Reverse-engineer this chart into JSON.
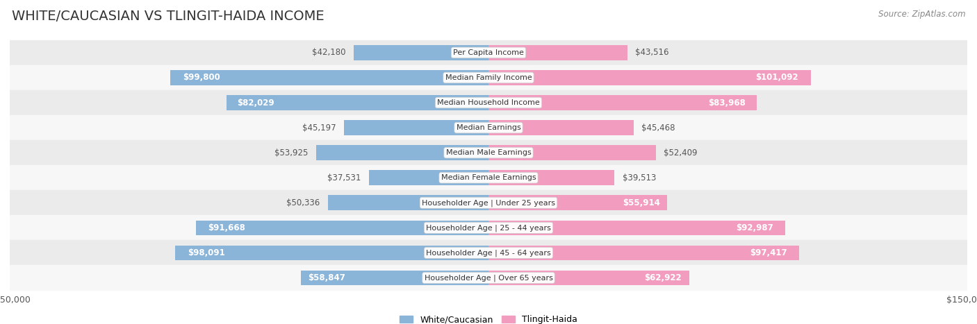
{
  "title": "WHITE/CAUCASIAN VS TLINGIT-HAIDA INCOME",
  "source": "Source: ZipAtlas.com",
  "categories": [
    "Per Capita Income",
    "Median Family Income",
    "Median Household Income",
    "Median Earnings",
    "Median Male Earnings",
    "Median Female Earnings",
    "Householder Age | Under 25 years",
    "Householder Age | 25 - 44 years",
    "Householder Age | 45 - 64 years",
    "Householder Age | Over 65 years"
  ],
  "white_values": [
    42180,
    99800,
    82029,
    45197,
    53925,
    37531,
    50336,
    91668,
    98091,
    58847
  ],
  "tlingit_values": [
    43516,
    101092,
    83968,
    45468,
    52409,
    39513,
    55914,
    92987,
    97417,
    62922
  ],
  "white_labels": [
    "$42,180",
    "$99,800",
    "$82,029",
    "$45,197",
    "$53,925",
    "$37,531",
    "$50,336",
    "$91,668",
    "$98,091",
    "$58,847"
  ],
  "tlingit_labels": [
    "$43,516",
    "$101,092",
    "$83,968",
    "$45,468",
    "$52,409",
    "$39,513",
    "$55,914",
    "$92,987",
    "$97,417",
    "$62,922"
  ],
  "white_color": "#8ab4d8",
  "tlingit_color": "#f29dbf",
  "max_value": 150000,
  "bar_height": 0.6,
  "background_color": "#ffffff",
  "row_even_color": "#ebebeb",
  "row_odd_color": "#f7f7f7",
  "label_inside_color": "#ffffff",
  "label_outside_color": "#555555",
  "label_fontsize": 8.5,
  "title_fontsize": 14,
  "category_fontsize": 8,
  "legend_fontsize": 9,
  "axis_label_fontsize": 9,
  "white_legend": "White/Caucasian",
  "tlingit_legend": "Tlingit-Haida",
  "inside_threshold": 55000
}
